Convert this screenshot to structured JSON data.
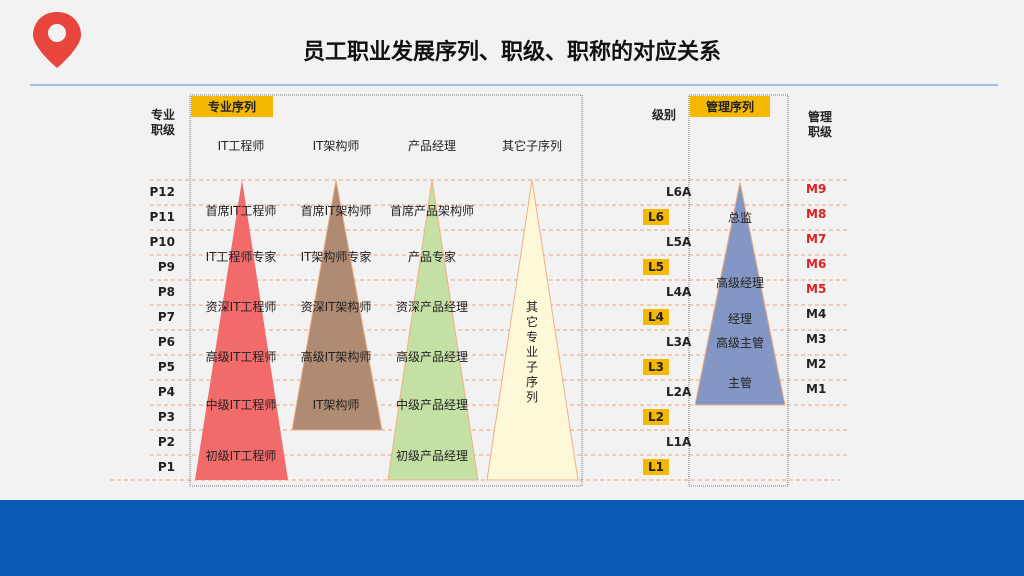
{
  "title": "员工职业发展序列、职级、职称的对应关系",
  "colors": {
    "accent": "#f5b800",
    "band": "#0b5cb5",
    "red_level": "#e02020",
    "pin": "#e8453c"
  },
  "icons": {
    "logo": "map-pin-icon"
  },
  "professional": {
    "axis_label_1": "专业",
    "axis_label_2": "职级",
    "tag": "专业序列",
    "levels": [
      "P12",
      "P11",
      "P10",
      "P9",
      "P8",
      "P7",
      "P6",
      "P5",
      "P4",
      "P3",
      "P2",
      "P1"
    ],
    "columns": [
      {
        "title": "IT工程师",
        "color": "#f26b6b",
        "roles": [
          "首席IT工程师",
          "IT工程师专家",
          "资深IT工程师",
          "高级IT工程师",
          "中级IT工程师",
          "初级IT工程师"
        ]
      },
      {
        "title": "IT架构师",
        "color": "#b08b73",
        "roles": [
          "首席IT架构师",
          "IT架构师专家",
          "资深IT架构师",
          "高级IT架构师",
          "IT架构师"
        ]
      },
      {
        "title": "产品经理",
        "color": "#c5e0a5",
        "roles": [
          "首席产品架构师",
          "产品专家",
          "资深产品经理",
          "高级产品经理",
          "中级产品经理",
          "初级产品经理"
        ]
      },
      {
        "title": "其它子序列",
        "color": "#fdf8d8",
        "vertical_label": [
          "其",
          "它",
          "专",
          "业",
          "子",
          "序",
          "列"
        ]
      }
    ]
  },
  "grades": {
    "header": "级别",
    "items": [
      "L6A",
      "L6",
      "L5A",
      "L5",
      "L4A",
      "L4",
      "L3A",
      "L3",
      "L2A",
      "L2",
      "L1A",
      "L1"
    ]
  },
  "management": {
    "tag": "管理序列",
    "color": "#8496c4",
    "roles": [
      "总监",
      "高级经理",
      "经理",
      "高级主管",
      "主管"
    ],
    "axis_label_1": "管理",
    "axis_label_2": "职级",
    "levels": [
      {
        "label": "M9",
        "highlight": true
      },
      {
        "label": "M8",
        "highlight": true
      },
      {
        "label": "M7",
        "highlight": true
      },
      {
        "label": "M6",
        "highlight": true
      },
      {
        "label": "M5",
        "highlight": true
      },
      {
        "label": "M4",
        "highlight": false
      },
      {
        "label": "M3",
        "highlight": false
      },
      {
        "label": "M2",
        "highlight": false
      },
      {
        "label": "M1",
        "highlight": false
      }
    ]
  }
}
